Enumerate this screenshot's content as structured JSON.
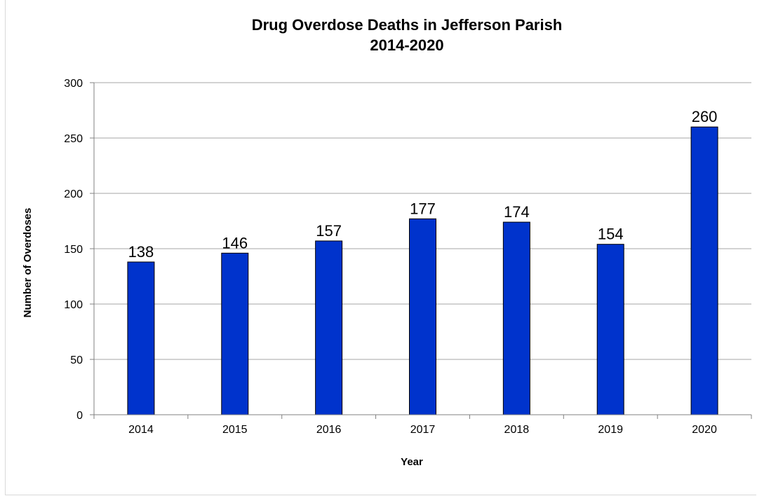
{
  "chart_data": {
    "type": "bar",
    "title": "Drug Overdose Deaths in Jefferson Parish",
    "subtitle": "2014-2020",
    "xlabel": "Year",
    "ylabel": "Number of Overdoses",
    "categories": [
      "2014",
      "2015",
      "2016",
      "2017",
      "2018",
      "2019",
      "2020"
    ],
    "values": [
      138,
      146,
      157,
      177,
      174,
      154,
      260
    ],
    "data_labels": [
      "138",
      "146",
      "157",
      "177",
      "174",
      "154",
      "260"
    ],
    "ylim": [
      0,
      300
    ],
    "yticks": [
      "0",
      "50",
      "100",
      "150",
      "200",
      "250",
      "300"
    ],
    "grid": true,
    "legend": "none",
    "colors": {
      "bar_fill": "#0033cc",
      "bar_stroke": "#000000",
      "grid": "#a6a6a6",
      "axis": "#808080"
    }
  }
}
